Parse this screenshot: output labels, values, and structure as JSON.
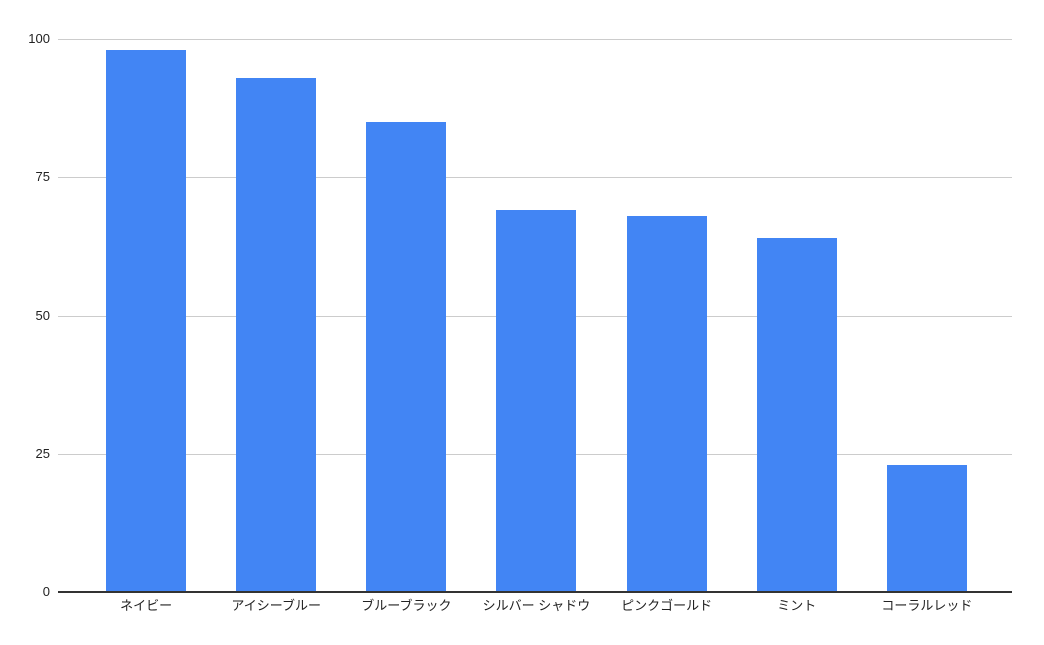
{
  "chart_data": {
    "type": "bar",
    "title": "",
    "xlabel": "",
    "ylabel": "",
    "categories": [
      "ネイビー",
      "アイシーブルー",
      "ブルーブラック",
      "シルバー シャドウ",
      "ピンクゴールド",
      "ミント",
      "コーラルレッド"
    ],
    "values": [
      98,
      93,
      85,
      69,
      68,
      64,
      23
    ],
    "ylim": [
      0,
      100
    ],
    "yticks": [
      0,
      25,
      50,
      75,
      100
    ],
    "grid": true,
    "legend": "none",
    "colors": {
      "bar": "#4285f4",
      "gridline": "#cccccc",
      "axis_line": "#333333",
      "text": "#222222",
      "background": "#ffffff"
    }
  }
}
